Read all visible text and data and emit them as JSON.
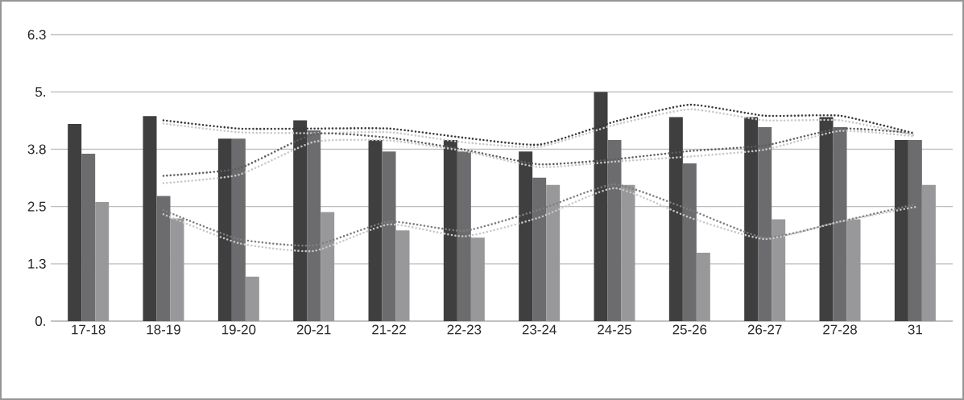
{
  "chart_data": {
    "type": "bar",
    "categories": [
      "17-18",
      "18-19",
      "19-20",
      "20-21",
      "21-22",
      "22-23",
      "23-24",
      "24-25",
      "25-26",
      "26-27",
      "27-28",
      "31"
    ],
    "series": [
      {
        "color": "#3f3f3f",
        "values": [
          4.3,
          4.47,
          3.98,
          4.38,
          3.95,
          3.95,
          3.7,
          5.0,
          4.45,
          4.45,
          4.45,
          3.95
        ]
      },
      {
        "color": "#6c6c6f",
        "values": [
          3.65,
          2.73,
          3.98,
          4.16,
          3.7,
          3.7,
          3.13,
          3.95,
          3.44,
          4.23,
          4.23,
          3.95
        ]
      },
      {
        "color": "#98989a",
        "values": [
          2.6,
          2.24,
          0.97,
          2.38,
          1.98,
          1.82,
          2.97,
          2.97,
          1.49,
          2.22,
          2.22,
          2.97
        ]
      },
      {
        "type": "line",
        "line_style": "dotted",
        "color": "#3a3a3a",
        "values": [
          null,
          4.38,
          4.2,
          4.2,
          4.2,
          4.0,
          3.85,
          4.35,
          4.72,
          4.48,
          4.48,
          4.09
        ]
      },
      {
        "type": "line",
        "line_style": "dotted",
        "color": "#c8c8c8",
        "values": [
          null,
          4.31,
          4.12,
          4.1,
          4.12,
          3.9,
          3.8,
          4.28,
          4.62,
          4.38,
          4.38,
          4.05
        ]
      },
      {
        "type": "line",
        "line_style": "dotted",
        "color": "#5e5e61",
        "values": [
          null,
          3.17,
          3.33,
          4.08,
          4.0,
          3.74,
          3.42,
          3.53,
          3.71,
          3.83,
          4.2,
          4.1
        ]
      },
      {
        "type": "line",
        "line_style": "dotted",
        "color": "#c8c8c8",
        "values": [
          null,
          3.01,
          3.19,
          3.91,
          3.94,
          3.71,
          3.36,
          3.48,
          3.59,
          3.74,
          4.15,
          4.03
        ]
      },
      {
        "type": "line",
        "line_style": "dotted",
        "color": "#7e7e80",
        "values": [
          null,
          2.42,
          1.79,
          1.65,
          2.17,
          1.97,
          2.43,
          2.98,
          2.43,
          1.82,
          2.17,
          2.55
        ]
      },
      {
        "type": "line",
        "line_style": "dotted",
        "color": "#c8c8c8",
        "values": [
          null,
          2.33,
          1.7,
          1.53,
          2.11,
          1.85,
          2.26,
          2.9,
          2.26,
          1.79,
          2.17,
          2.49
        ]
      }
    ],
    "ylim": [
      0,
      6.25
    ],
    "yticks": [
      {
        "value": 0,
        "label": "0."
      },
      {
        "value": 1.25,
        "label": "1.3"
      },
      {
        "value": 2.5,
        "label": "2.5"
      },
      {
        "value": 3.75,
        "label": "3.8"
      },
      {
        "value": 5,
        "label": "5."
      },
      {
        "value": 6.25,
        "label": "6.3"
      }
    ],
    "grid": "y",
    "marker": "none"
  }
}
